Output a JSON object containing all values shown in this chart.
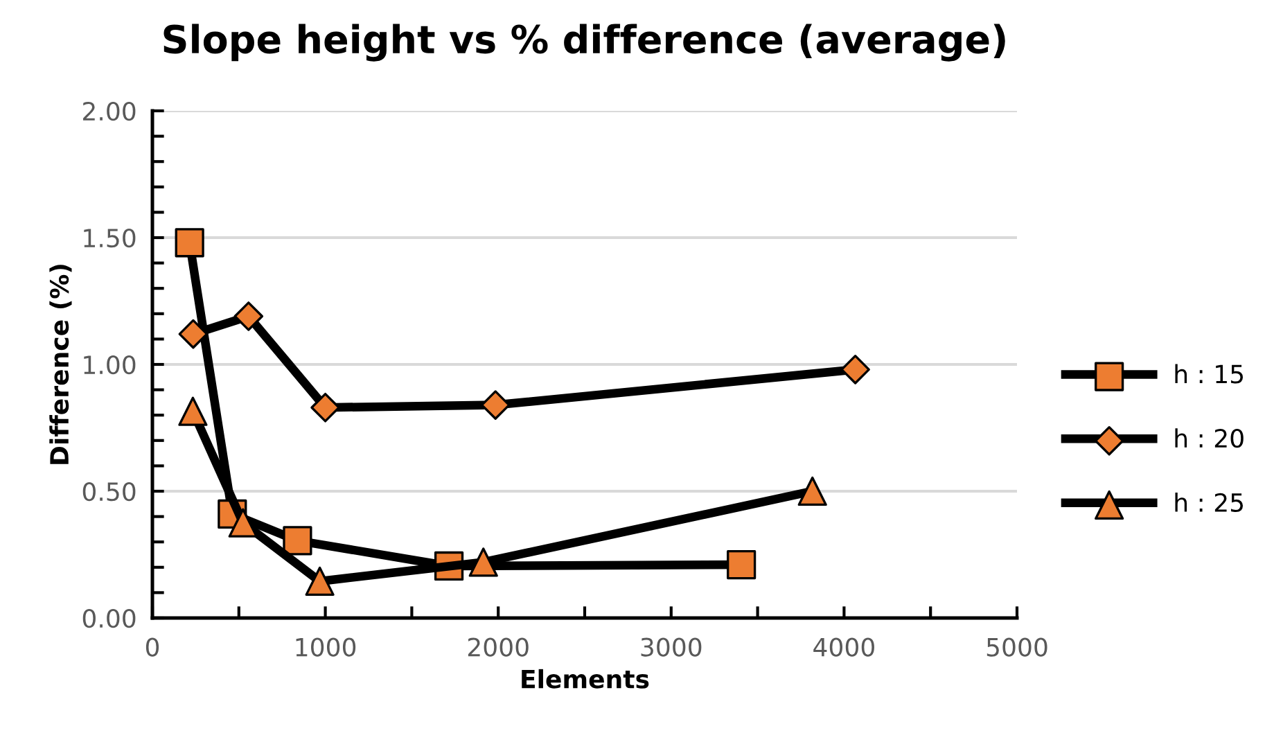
{
  "chart_data": {
    "type": "line",
    "title": "Slope height vs % difference (average)",
    "xlabel": "Elements",
    "ylabel": "Difference (%)",
    "series": [
      {
        "name": "h : 15",
        "color": "#000000",
        "marker": "square",
        "x": [
          215,
          462,
          839,
          1715,
          3406
        ],
        "values": [
          1.48,
          0.41,
          0.305,
          0.205,
          0.21
        ],
        "colors": [
          "#ed7d31",
          "#ed7d31",
          "#ed7d31",
          "#ed7d31",
          "#ed7d31"
        ]
      },
      {
        "name": "h : 20",
        "color": "#000000",
        "marker": "diamond",
        "x": [
          236,
          556,
          1000,
          1984,
          4065
        ],
        "values": [
          1.12,
          1.19,
          0.83,
          0.84,
          0.98
        ],
        "colors": [
          "#ed7d31",
          "#ed7d31",
          "#ed7d31",
          "#ed7d31",
          "#ed7d31"
        ]
      },
      {
        "name": "h : 25",
        "color": "#000000",
        "marker": "triangle",
        "x": [
          234,
          524,
          968,
          1914,
          3817
        ],
        "values": [
          0.815,
          0.375,
          0.145,
          0.22,
          0.5
        ],
        "colors": [
          "#ed7d31",
          "#ed7d31",
          "#ed7d31",
          "#ed7d31",
          "#ed7d31"
        ]
      }
    ],
    "xlim": [
      0,
      5000
    ],
    "xticks": [
      0,
      {
        "value": 500,
        "label": null
      },
      1000,
      {
        "value": 1500,
        "label": null
      },
      2000,
      {
        "value": 2500,
        "label": null
      },
      3000,
      {
        "value": 3500,
        "label": null
      },
      4000,
      {
        "value": 4500,
        "label": null
      },
      5000
    ],
    "ylim": [
      0,
      2
    ],
    "yticks": [
      {
        "value": 0,
        "label": "0.00"
      },
      {
        "value": 0.1,
        "label": null
      },
      {
        "value": 0.2,
        "label": null
      },
      {
        "value": 0.3,
        "label": null
      },
      {
        "value": 0.4,
        "label": null
      },
      {
        "value": 0.5,
        "label": "0.50"
      },
      {
        "value": 0.6,
        "label": null
      },
      {
        "value": 0.7,
        "label": null
      },
      {
        "value": 0.8,
        "label": null
      },
      {
        "value": 0.9,
        "label": null
      },
      {
        "value": 1.0,
        "label": "1.00"
      },
      {
        "value": 1.1,
        "label": null
      },
      {
        "value": 1.2,
        "label": null
      },
      {
        "value": 1.3,
        "label": null
      },
      {
        "value": 1.4,
        "label": null
      },
      {
        "value": 1.5,
        "label": "1.50"
      },
      {
        "value": 1.6,
        "label": null
      },
      {
        "value": 1.7,
        "label": null
      },
      {
        "value": 1.8,
        "label": null
      },
      {
        "value": 1.9,
        "label": null
      },
      {
        "value": 2.0,
        "label": "2.00"
      }
    ],
    "grid": "y",
    "legend": "right",
    "line_style": "solid"
  }
}
